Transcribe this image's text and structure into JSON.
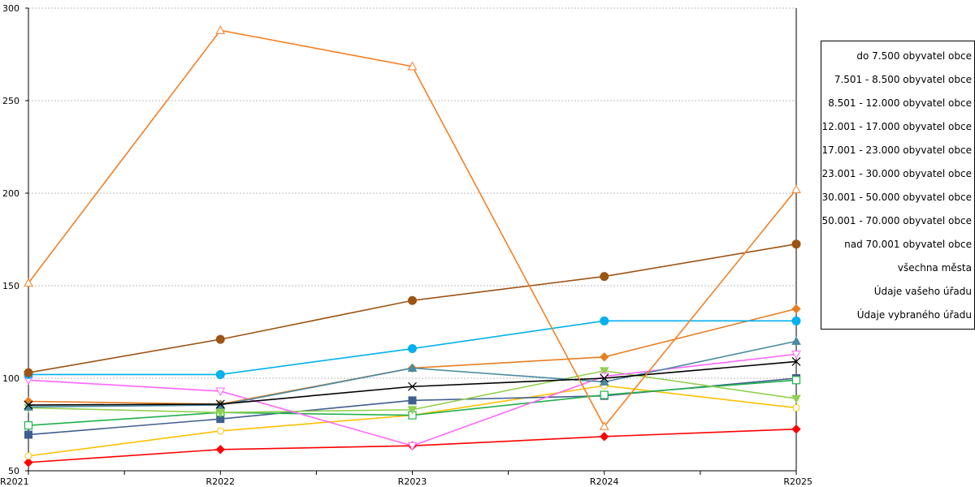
{
  "chart_data": {
    "type": "line",
    "title": "",
    "xlabel": "",
    "ylabel": "",
    "categories": [
      "R2021",
      "R2022",
      "R2023",
      "R2024",
      "R2025"
    ],
    "ylim": [
      50,
      300
    ],
    "yticks": [
      50,
      100,
      150,
      200,
      250,
      300
    ],
    "grid": true,
    "legend_position": "right",
    "series": [
      {
        "name": "do 7.500 obyvatel obce",
        "color": "#ff0000",
        "marker": "diamond",
        "values": [
          54.5,
          61.5,
          63.5,
          68.5,
          72.5
        ]
      },
      {
        "name": "7.501 - 8.500 obyvatel obce",
        "color": "#ffc000",
        "marker": "circle-open",
        "values": [
          58,
          71.5,
          80,
          96,
          84
        ]
      },
      {
        "name": "8.501 - 12.000 obyvatel obce",
        "color": "#3f5f8f",
        "marker": "square",
        "values": [
          69.5,
          78,
          88,
          90.5,
          100
        ]
      },
      {
        "name": "12.001 - 17.000 obyvatel obce",
        "color": "#22b14c",
        "marker": "square-open",
        "values": [
          74.5,
          81.5,
          80,
          91,
          99
        ]
      },
      {
        "name": "17.001 - 23.000 obyvatel obce",
        "color": "#92d050",
        "marker": "triangle-down",
        "values": [
          84,
          81.5,
          83,
          104,
          89
        ]
      },
      {
        "name": "23.001 - 30.000 obyvatel obce",
        "color": "#ff66ff",
        "marker": "triangle-down-open",
        "values": [
          99,
          93,
          63.5,
          101,
          113
        ]
      },
      {
        "name": "30.001 - 50.000 obyvatel obce",
        "color": "#e67e22",
        "marker": "diamond",
        "values": [
          87.5,
          86,
          105.5,
          111.5,
          137.5
        ]
      },
      {
        "name": "50.001 - 70.000 obyvatel obce",
        "color": "#4a8aa0",
        "marker": "triangle",
        "values": [
          84.5,
          85.5,
          105.5,
          98,
          120
        ]
      },
      {
        "name": "nad 70.001 obyvatel obce",
        "color": "#000000",
        "marker": "x",
        "values": [
          85.5,
          86,
          95.5,
          100,
          109
        ]
      },
      {
        "name": "všechna města",
        "color": "#00b0f0",
        "marker": "circle",
        "values": [
          102,
          102,
          116,
          131,
          131
        ]
      },
      {
        "name": "Údaje vašeho úřadu",
        "color": "#9c5414",
        "marker": "circle",
        "values": [
          103,
          121,
          142,
          155,
          172.5
        ]
      },
      {
        "name": "Údaje vybraného úřadu",
        "color": "#f57f24",
        "marker": "triangle-open",
        "values": [
          151.5,
          288,
          268.5,
          74,
          202
        ]
      }
    ]
  }
}
